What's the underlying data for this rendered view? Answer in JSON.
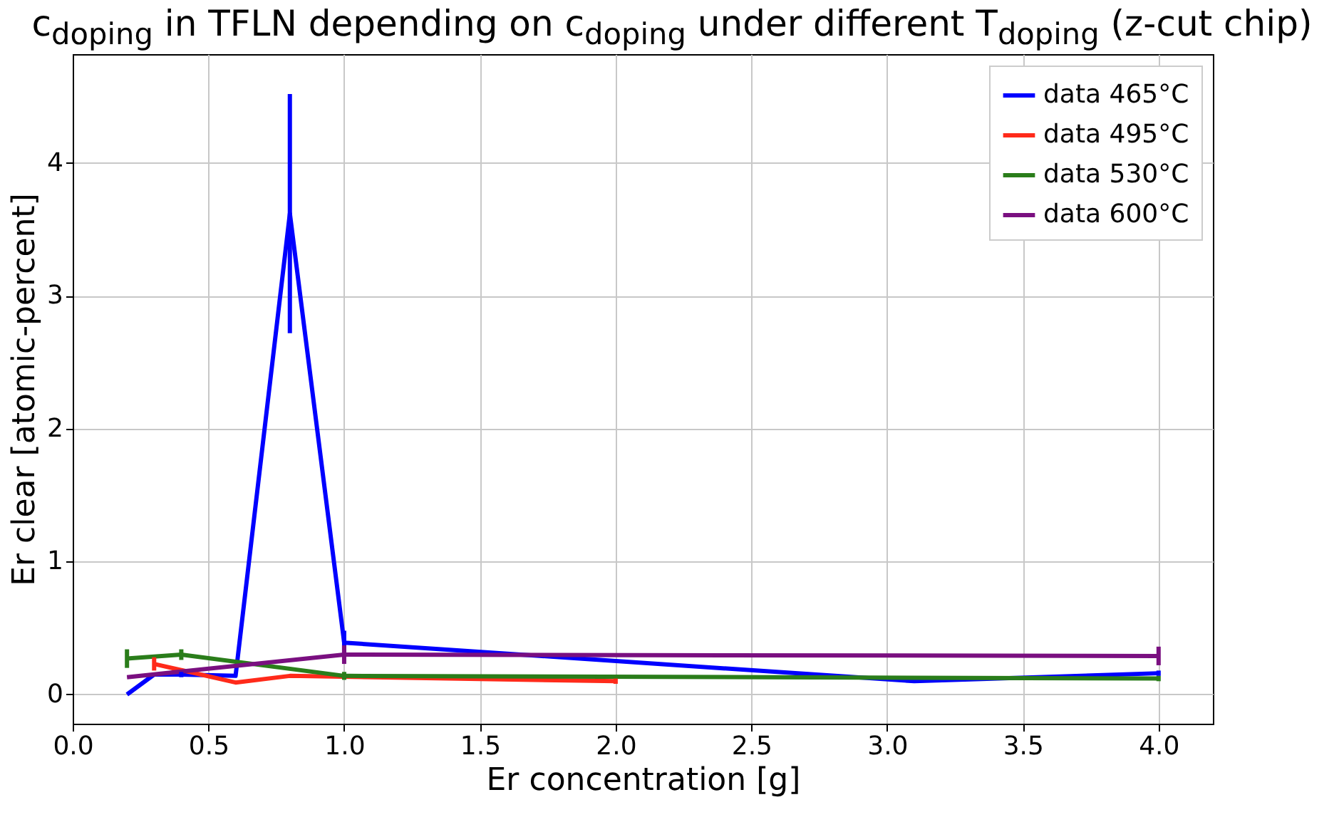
{
  "chart_data": {
    "type": "line",
    "title": "c$_{doping}$ in TFLN depending on c$_{doping}$ under different T$_{doping}$ (z-cut chip)",
    "xlabel": "Er concentration [g]",
    "ylabel": "Er clear [atomic-percent]",
    "xlim": [
      0,
      4.2
    ],
    "ylim": [
      -0.22,
      4.82
    ],
    "xticks": [
      {
        "value": 0,
        "label": "0.0"
      },
      {
        "value": 0.5,
        "label": "0.5"
      },
      {
        "value": 1,
        "label": "1.0"
      },
      {
        "value": 1.5,
        "label": "1.5"
      },
      {
        "value": 2,
        "label": "2.0"
      },
      {
        "value": 2.5,
        "label": "2.5"
      },
      {
        "value": 3,
        "label": "3.0"
      },
      {
        "value": 3.5,
        "label": "3.5"
      },
      {
        "value": 4,
        "label": "4.0"
      }
    ],
    "yticks": [
      0,
      1,
      2,
      3,
      4
    ],
    "grid": true,
    "legend": "top right",
    "marker": "none",
    "line_style": "solid",
    "series": [
      {
        "name": "data 465°C",
        "color": "#0000ff",
        "x": [
          0.2,
          0.3,
          0.4,
          0.6,
          0.8,
          1.0,
          3.1,
          4.0
        ],
        "values": [
          0.0,
          0.15,
          0.15,
          0.14,
          3.62,
          0.39,
          0.1,
          0.16
        ],
        "errors": [
          null,
          null,
          0.02,
          null,
          0.9,
          0.09,
          null,
          0.02
        ]
      },
      {
        "name": "data 495°C",
        "color": "#ff2a1a",
        "x": [
          0.3,
          0.6,
          0.8,
          2.0
        ],
        "values": [
          0.23,
          0.09,
          0.14,
          0.1
        ],
        "errors": [
          0.05,
          null,
          null,
          0.02
        ]
      },
      {
        "name": "data 530°C",
        "color": "#2a7d1a",
        "x": [
          0.2,
          0.4,
          1.0,
          4.0
        ],
        "values": [
          0.27,
          0.3,
          0.14,
          0.12
        ],
        "errors": [
          0.07,
          0.04,
          0.03,
          0.02
        ]
      },
      {
        "name": "data 600°C",
        "color": "#7a0f80",
        "x": [
          0.2,
          1.0,
          4.0
        ],
        "values": [
          0.13,
          0.3,
          0.29
        ],
        "errors": [
          null,
          0.07,
          0.07
        ]
      }
    ]
  }
}
